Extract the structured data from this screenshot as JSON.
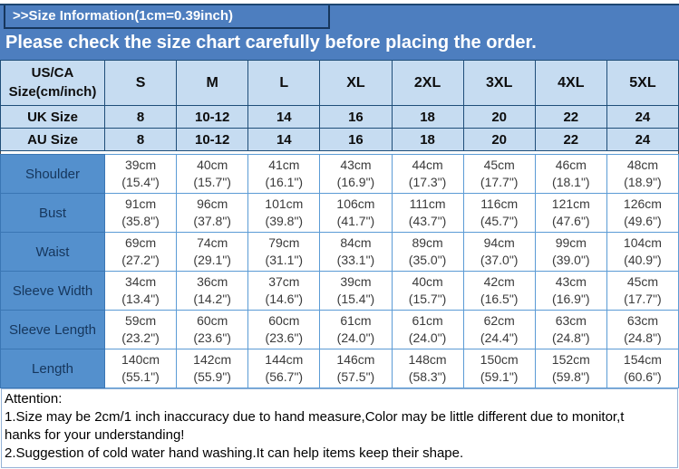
{
  "banner": {
    "title": ">>Size Information(1cm=0.39inch)",
    "subtitle": "Please check the size chart carefully before placing the order."
  },
  "table": {
    "corner_header_line1": "US/CA",
    "corner_header_line2": "Size(cm/inch)",
    "size_columns": [
      "S",
      "M",
      "L",
      "XL",
      "2XL",
      "3XL",
      "4XL",
      "5XL"
    ],
    "size_rows": [
      {
        "label": "UK Size",
        "values": [
          "8",
          "10-12",
          "14",
          "16",
          "18",
          "20",
          "22",
          "24"
        ]
      },
      {
        "label": "AU Size",
        "values": [
          "8",
          "10-12",
          "14",
          "16",
          "18",
          "20",
          "22",
          "24"
        ]
      }
    ],
    "measurement_rows": [
      {
        "label": "Shoulder",
        "cells": [
          {
            "cm": "39cm",
            "inch": "(15.4\")"
          },
          {
            "cm": "40cm",
            "inch": "(15.7\")"
          },
          {
            "cm": "41cm",
            "inch": "(16.1\")"
          },
          {
            "cm": "43cm",
            "inch": "(16.9\")"
          },
          {
            "cm": "44cm",
            "inch": "(17.3\")"
          },
          {
            "cm": "45cm",
            "inch": "(17.7\")"
          },
          {
            "cm": "46cm",
            "inch": "(18.1\")"
          },
          {
            "cm": "48cm",
            "inch": "(18.9\")"
          }
        ]
      },
      {
        "label": "Bust",
        "cells": [
          {
            "cm": "91cm",
            "inch": "(35.8\")"
          },
          {
            "cm": "96cm",
            "inch": "(37.8\")"
          },
          {
            "cm": "101cm",
            "inch": "(39.8\")"
          },
          {
            "cm": "106cm",
            "inch": "(41.7\")"
          },
          {
            "cm": "111cm",
            "inch": "(43.7\")"
          },
          {
            "cm": "116cm",
            "inch": "(45.7\")"
          },
          {
            "cm": "121cm",
            "inch": "(47.6\")"
          },
          {
            "cm": "126cm",
            "inch": "(49.6\")"
          }
        ]
      },
      {
        "label": "Waist",
        "cells": [
          {
            "cm": "69cm",
            "inch": "(27.2\")"
          },
          {
            "cm": "74cm",
            "inch": "(29.1\")"
          },
          {
            "cm": "79cm",
            "inch": "(31.1\")"
          },
          {
            "cm": "84cm",
            "inch": "(33.1\")"
          },
          {
            "cm": "89cm",
            "inch": "(35.0\")"
          },
          {
            "cm": "94cm",
            "inch": "(37.0\")"
          },
          {
            "cm": "99cm",
            "inch": "(39.0\")"
          },
          {
            "cm": "104cm",
            "inch": "(40.9\")"
          }
        ]
      },
      {
        "label": "Sleeve Width",
        "cells": [
          {
            "cm": "34cm",
            "inch": "(13.4\")"
          },
          {
            "cm": "36cm",
            "inch": "(14.2\")"
          },
          {
            "cm": "37cm",
            "inch": "(14.6\")"
          },
          {
            "cm": "39cm",
            "inch": "(15.4\")"
          },
          {
            "cm": "40cm",
            "inch": "(15.7\")"
          },
          {
            "cm": "42cm",
            "inch": "(16.5\")"
          },
          {
            "cm": "43cm",
            "inch": "(16.9\")"
          },
          {
            "cm": "45cm",
            "inch": "(17.7\")"
          }
        ]
      },
      {
        "label": "Sleeve Length",
        "cells": [
          {
            "cm": "59cm",
            "inch": "(23.2\")"
          },
          {
            "cm": "60cm",
            "inch": "(23.6\")"
          },
          {
            "cm": "60cm",
            "inch": "(23.6\")"
          },
          {
            "cm": "61cm",
            "inch": "(24.0\")"
          },
          {
            "cm": "61cm",
            "inch": "(24.0\")"
          },
          {
            "cm": "62cm",
            "inch": "(24.4\")"
          },
          {
            "cm": "63cm",
            "inch": "(24.8\")"
          },
          {
            "cm": "63cm",
            "inch": "(24.8\")"
          }
        ]
      },
      {
        "label": "Length",
        "cells": [
          {
            "cm": "140cm",
            "inch": "(55.1\")"
          },
          {
            "cm": "142cm",
            "inch": "(55.9\")"
          },
          {
            "cm": "144cm",
            "inch": "(56.7\")"
          },
          {
            "cm": "146cm",
            "inch": "(57.5\")"
          },
          {
            "cm": "148cm",
            "inch": "(58.3\")"
          },
          {
            "cm": "150cm",
            "inch": "(59.1\")"
          },
          {
            "cm": "152cm",
            "inch": "(59.8\")"
          },
          {
            "cm": "154cm",
            "inch": "(60.6\")"
          }
        ]
      }
    ]
  },
  "attention": {
    "heading": "Attention:",
    "line1": "1.Size may be 2cm/1 inch inaccuracy due to hand measure,Color may be little different due to monitor,t",
    "line2": "hanks for your understanding!",
    "line3": "2.Suggestion of cold water hand washing.It can help items keep their shape."
  },
  "colors": {
    "banner_blue": "#4d7ebf",
    "header_light_blue": "#c6dcf1",
    "label_blue": "#5490cd",
    "grid_blue": "#5b9bd5",
    "dark_navy_border": "#16365c",
    "attention_border": "#95b3d7"
  }
}
